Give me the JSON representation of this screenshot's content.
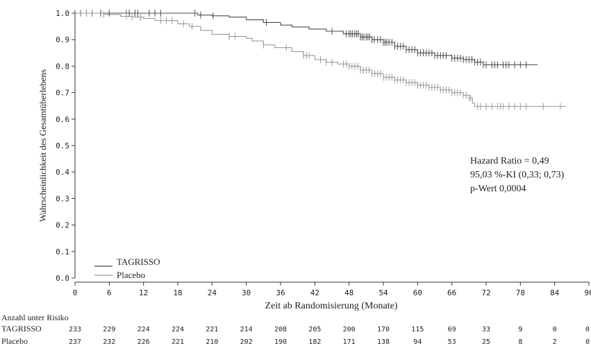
{
  "chart_data": {
    "type": "line",
    "subtype": "kaplan-meier",
    "title": "",
    "xlabel": "Zeit ab Randomisierung (Monate)",
    "ylabel": "Wahrscheinlichkeit des Gesamtüberlebens",
    "xlim": [
      0,
      90
    ],
    "ylim": [
      0,
      1.0
    ],
    "x_ticks": [
      0,
      6,
      12,
      18,
      24,
      30,
      36,
      42,
      48,
      54,
      60,
      66,
      72,
      78,
      84,
      90
    ],
    "y_ticks": [
      "0.0",
      "0.1",
      "0.2",
      "0.3",
      "0.4",
      "0.5",
      "0.6",
      "0.7",
      "0.8",
      "0.9",
      "1.0"
    ],
    "grid": false,
    "legend_position": "bottom-left",
    "series": [
      {
        "name": "TAGRISSO",
        "color": "#4a4a4a",
        "points": [
          [
            0,
            1.0
          ],
          [
            20,
            1.0
          ],
          [
            21.5,
            0.993
          ],
          [
            24,
            0.99
          ],
          [
            27,
            0.985
          ],
          [
            30,
            0.975
          ],
          [
            33,
            0.965
          ],
          [
            36,
            0.955
          ],
          [
            38,
            0.948
          ],
          [
            41,
            0.94
          ],
          [
            44,
            0.932
          ],
          [
            47,
            0.922
          ],
          [
            50,
            0.91
          ],
          [
            52,
            0.9
          ],
          [
            54,
            0.89
          ],
          [
            56,
            0.875
          ],
          [
            58,
            0.862
          ],
          [
            60,
            0.85
          ],
          [
            63,
            0.84
          ],
          [
            66,
            0.83
          ],
          [
            68,
            0.825
          ],
          [
            70,
            0.815
          ],
          [
            71.5,
            0.805
          ],
          [
            74,
            0.805
          ],
          [
            79,
            0.805
          ],
          [
            81,
            0.805
          ]
        ],
        "censor_x": [
          1,
          2,
          3,
          4.5,
          6,
          9,
          9.5,
          10.5,
          11,
          13,
          14,
          15,
          21,
          22,
          24.2,
          33.5,
          45,
          47.5,
          48,
          48.3,
          48.6,
          49,
          49.3,
          49.6,
          50,
          50.3,
          50.6,
          51,
          51.3,
          51.6,
          52,
          52.4,
          53,
          53.5,
          54,
          54.3,
          54.6,
          55,
          55.5,
          56,
          56.5,
          57,
          57.5,
          58,
          58.5,
          59,
          59.5,
          60,
          60.5,
          61,
          61.5,
          62,
          62.5,
          63,
          63.5,
          64,
          64.5,
          65,
          66,
          66.5,
          67,
          67.5,
          68,
          68.5,
          69,
          69.5,
          70,
          70.5,
          71,
          71.5,
          72,
          73,
          73.5,
          74,
          75,
          75.5,
          76,
          77,
          78,
          79
        ]
      },
      {
        "name": "Placebo",
        "color": "#9a9a9a",
        "points": [
          [
            0,
            1.0
          ],
          [
            4,
            1.0
          ],
          [
            5,
            0.995
          ],
          [
            8,
            0.988
          ],
          [
            10,
            0.985
          ],
          [
            12,
            0.98
          ],
          [
            14,
            0.972
          ],
          [
            18,
            0.96
          ],
          [
            20,
            0.95
          ],
          [
            22,
            0.935
          ],
          [
            24,
            0.92
          ],
          [
            27,
            0.912
          ],
          [
            30,
            0.905
          ],
          [
            31,
            0.895
          ],
          [
            33,
            0.88
          ],
          [
            35,
            0.87
          ],
          [
            38,
            0.855
          ],
          [
            40,
            0.84
          ],
          [
            42,
            0.825
          ],
          [
            44,
            0.815
          ],
          [
            46,
            0.808
          ],
          [
            48,
            0.8
          ],
          [
            50,
            0.785
          ],
          [
            52,
            0.772
          ],
          [
            54,
            0.758
          ],
          [
            56,
            0.748
          ],
          [
            58,
            0.738
          ],
          [
            60,
            0.728
          ],
          [
            62,
            0.72
          ],
          [
            64,
            0.71
          ],
          [
            66,
            0.7
          ],
          [
            68,
            0.69
          ],
          [
            69,
            0.68
          ],
          [
            69.6,
            0.66
          ],
          [
            70,
            0.648
          ],
          [
            75,
            0.648
          ],
          [
            86,
            0.648
          ]
        ],
        "censor_x": [
          1,
          2,
          3,
          5,
          9,
          10,
          11.5,
          15,
          16,
          17,
          19,
          20.5,
          27,
          28,
          33,
          37,
          40,
          40.5,
          41,
          43,
          44,
          45,
          47,
          47.5,
          48,
          48.5,
          49,
          49.5,
          50,
          50.5,
          51,
          51.5,
          52,
          52.5,
          53,
          53.5,
          54,
          54.5,
          55,
          55.5,
          56,
          56.5,
          57,
          57.5,
          58,
          58.5,
          59,
          59.5,
          60,
          60.5,
          61,
          61.5,
          62,
          62.5,
          63,
          63.5,
          64,
          64.5,
          65,
          65.5,
          66,
          66.5,
          67,
          67.5,
          68,
          68.5,
          69,
          69.3,
          70.5,
          71,
          72,
          73,
          74,
          74.5,
          75,
          76,
          77,
          78,
          79,
          82,
          85
        ]
      }
    ],
    "annotation": {
      "lines": [
        "Hazard Ratio = 0,49",
        "95,03 %-KI (0,33; 0,73)",
        "p-Wert 0,0004"
      ]
    },
    "risk_table": {
      "title": "Anzahl unter Risiko",
      "times": [
        0,
        6,
        12,
        18,
        24,
        30,
        36,
        42,
        48,
        54,
        60,
        66,
        72,
        78,
        84,
        90
      ],
      "rows": [
        {
          "label": "TAGRISSO",
          "values": [
            "233",
            "229",
            "224",
            "224",
            "221",
            "214",
            "208",
            "205",
            "200",
            "170",
            "115",
            "69",
            "33",
            "9",
            "0",
            "0"
          ]
        },
        {
          "label": "Placebo",
          "values": [
            "237",
            "232",
            "226",
            "221",
            "210",
            "202",
            "190",
            "182",
            "171",
            "138",
            "94",
            "53",
            "25",
            "8",
            "2",
            "0"
          ]
        }
      ]
    }
  }
}
